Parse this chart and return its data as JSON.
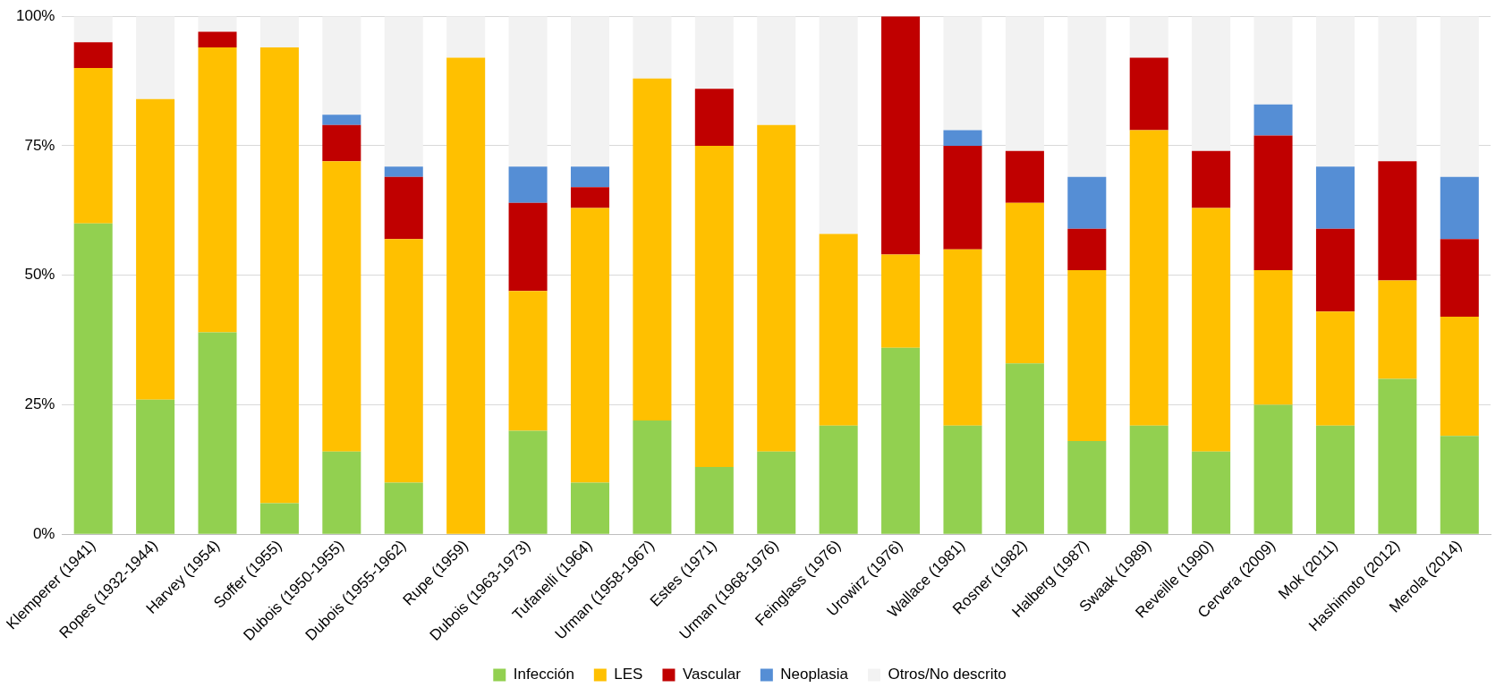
{
  "chart_data": {
    "type": "bar",
    "stacked": true,
    "categories": [
      "Klemperer (1941)",
      "Ropes (1932-1944)",
      "Harvey (1954)",
      "Soffer (1955)",
      "Dubois (1950-1955)",
      "Dubois (1955-1962)",
      "Rupe (1959)",
      "Dubois (1963-1973)",
      "Tufanelli (1964)",
      "Urman (1958-1967)",
      "Estes (1971)",
      "Urman (1968-1976)",
      "Feinglass (1976)",
      "Urowirz (1976)",
      "Wallace (1981)",
      "Rosner (1982)",
      "Halberg (1987)",
      "Swaak (1989)",
      "Reveille (1990)",
      "Cervera (2009)",
      "Mok (2011)",
      "Hashimoto (2012)",
      "Merola (2014)"
    ],
    "series": [
      {
        "name": "Infección",
        "color": "#92d050",
        "values": [
          60,
          26,
          39,
          6,
          16,
          10,
          0,
          20,
          10,
          22,
          13,
          16,
          21,
          36,
          21,
          33,
          18,
          21,
          16,
          25,
          21,
          30,
          19
        ]
      },
      {
        "name": "LES",
        "color": "#ffc000",
        "values": [
          30,
          58,
          55,
          88,
          56,
          47,
          92,
          27,
          53,
          66,
          62,
          63,
          37,
          18,
          34,
          31,
          33,
          57,
          47,
          26,
          22,
          19,
          23
        ]
      },
      {
        "name": "Vascular",
        "color": "#c00000",
        "values": [
          5,
          0,
          3,
          0,
          7,
          12,
          0,
          17,
          4,
          0,
          11,
          0,
          0,
          46,
          20,
          10,
          8,
          14,
          11,
          26,
          16,
          23,
          15
        ]
      },
      {
        "name": "Neoplasia",
        "color": "#558ed5",
        "values": [
          0,
          0,
          0,
          0,
          2,
          2,
          0,
          7,
          4,
          0,
          0,
          0,
          0,
          0,
          3,
          0,
          10,
          0,
          0,
          6,
          12,
          0,
          12
        ]
      },
      {
        "name": "Otros/No descrito",
        "color": "#f2f2f2",
        "values": [
          5,
          16,
          3,
          6,
          19,
          29,
          8,
          29,
          29,
          12,
          14,
          21,
          42,
          0,
          22,
          26,
          31,
          8,
          26,
          17,
          29,
          28,
          31
        ]
      }
    ],
    "ylim": [
      0,
      100
    ],
    "yticks": [
      {
        "value": 0,
        "label": "0%"
      },
      {
        "value": 25,
        "label": "25%"
      },
      {
        "value": 50,
        "label": "50%"
      },
      {
        "value": 75,
        "label": "75%"
      },
      {
        "value": 100,
        "label": "100%"
      }
    ],
    "grid": "y",
    "legend": "bottom"
  }
}
